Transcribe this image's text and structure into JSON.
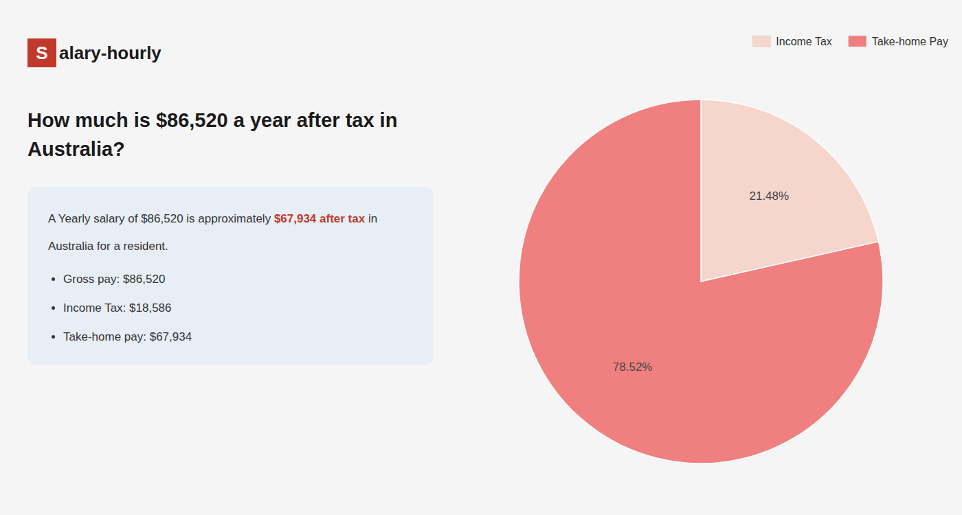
{
  "chart_data": {
    "type": "pie",
    "title": "How much is $86,520 a year after tax in\nAustralia?",
    "categories": [
      "Income Tax",
      "Take-home Pay"
    ],
    "values": [
      21.48,
      78.52
    ],
    "value_labels": [
      "21.48%",
      "78.52%"
    ],
    "colors": [
      "#f5d5cc",
      "#f08080"
    ],
    "data_labels": true,
    "legend": "upper right"
  },
  "page": {
    "logo": {
      "texts": [
        "S",
        "alary-hourly"
      ],
      "color": "#c0392b"
    },
    "summary": {
      "line1": [
        "A Yearly salary of $86,520 is approximately ",
        "$67,934 after tax",
        " in"
      ],
      "line2": "Australia for a resident.",
      "color": "#c0392b"
    },
    "bullets": [
      "Gross pay: $86,520",
      "Income Tax: $18,586",
      "Take-home pay: $67,934"
    ]
  }
}
